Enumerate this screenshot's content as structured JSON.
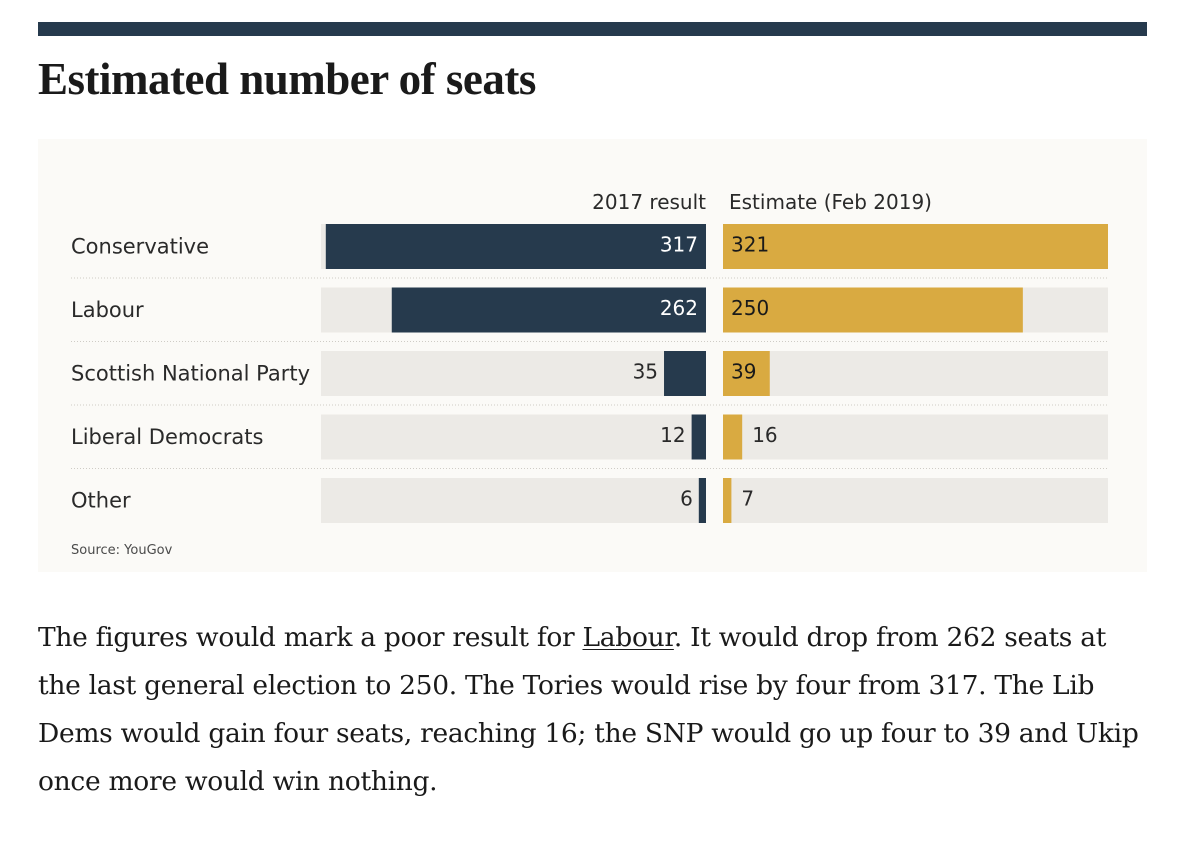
{
  "headline": "Estimated number of seats",
  "chart_data": {
    "type": "bar",
    "orientation": "horizontal-diverging",
    "categories": [
      "Conservative",
      "Labour",
      "Scottish National Party",
      "Liberal Democrats",
      "Other"
    ],
    "series": [
      {
        "name": "2017 result",
        "values": [
          317,
          262,
          35,
          12,
          6
        ],
        "color": "#263a4d"
      },
      {
        "name": "Estimate (Feb 2019)",
        "values": [
          321,
          250,
          39,
          16,
          7
        ],
        "color": "#d9aa41"
      }
    ],
    "xlim": [
      0,
      321
    ],
    "background_track_color": "#eceae6",
    "source": "Source: YouGov"
  },
  "body": {
    "before_link": "The figures would mark a poor result for ",
    "link_text": "Labour",
    "after_link": ". It would drop from 262 seats at the last general election to 250. The Tories would rise by four from 317. The Lib Dems would gain four seats, reaching 16; the SNP would go up four to 39 and Ukip once more would win nothing."
  }
}
